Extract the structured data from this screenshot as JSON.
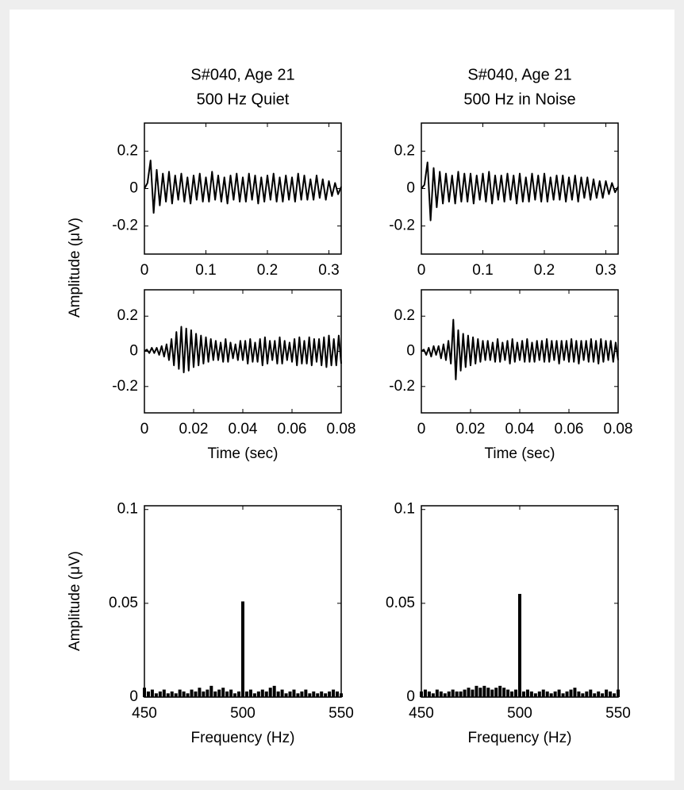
{
  "chart_data": [
    {
      "type": "line",
      "title": [
        "S#040, Age 21",
        "500 Hz Quiet"
      ],
      "ylabel": "Amplitude (μV)",
      "color": "#000000",
      "xlim": [
        0,
        0.32
      ],
      "ylim": [
        -0.35,
        0.35
      ],
      "xticks": [
        0,
        0.1,
        0.2,
        0.3
      ],
      "yticks": [
        -0.2,
        0,
        0.2
      ],
      "x": [
        0,
        0.005,
        0.01,
        0.015,
        0.02,
        0.025,
        0.03,
        0.035,
        0.04,
        0.045,
        0.05,
        0.055,
        0.06,
        0.065,
        0.07,
        0.075,
        0.08,
        0.085,
        0.09,
        0.095,
        0.1,
        0.105,
        0.11,
        0.115,
        0.12,
        0.125,
        0.13,
        0.135,
        0.14,
        0.145,
        0.15,
        0.155,
        0.16,
        0.165,
        0.17,
        0.175,
        0.18,
        0.185,
        0.19,
        0.195,
        0.2,
        0.205,
        0.21,
        0.215,
        0.22,
        0.225,
        0.23,
        0.235,
        0.24,
        0.245,
        0.25,
        0.255,
        0.26,
        0.265,
        0.27,
        0.275,
        0.28,
        0.285,
        0.29,
        0.295,
        0.3,
        0.305,
        0.31,
        0.315,
        0.32
      ],
      "values": [
        0,
        0.03,
        0.15,
        -0.13,
        0.1,
        -0.09,
        0.08,
        -0.07,
        0.09,
        -0.08,
        0.07,
        -0.06,
        0.08,
        -0.07,
        0.06,
        -0.08,
        0.07,
        -0.06,
        0.08,
        -0.07,
        0.06,
        -0.07,
        0.09,
        -0.06,
        0.07,
        -0.07,
        0.06,
        -0.08,
        0.07,
        -0.06,
        0.08,
        -0.07,
        0.06,
        -0.07,
        0.08,
        -0.06,
        0.07,
        -0.08,
        0.06,
        -0.07,
        0.07,
        -0.06,
        0.08,
        -0.07,
        0.06,
        -0.07,
        0.07,
        -0.06,
        0.06,
        -0.07,
        0.08,
        -0.06,
        0.07,
        -0.06,
        0.05,
        -0.06,
        0.07,
        -0.05,
        0.05,
        -0.06,
        0.04,
        -0.04,
        0.03,
        -0.03,
        0.01
      ]
    },
    {
      "type": "line",
      "title": [
        "S#040, Age 21",
        "500 Hz in Noise"
      ],
      "color": "#000000",
      "xlim": [
        0,
        0.32
      ],
      "ylim": [
        -0.35,
        0.35
      ],
      "xticks": [
        0,
        0.1,
        0.2,
        0.3
      ],
      "yticks": [
        -0.2,
        0,
        0.2
      ],
      "x": [
        0,
        0.005,
        0.01,
        0.015,
        0.02,
        0.025,
        0.03,
        0.035,
        0.04,
        0.045,
        0.05,
        0.055,
        0.06,
        0.065,
        0.07,
        0.075,
        0.08,
        0.085,
        0.09,
        0.095,
        0.1,
        0.105,
        0.11,
        0.115,
        0.12,
        0.125,
        0.13,
        0.135,
        0.14,
        0.145,
        0.15,
        0.155,
        0.16,
        0.165,
        0.17,
        0.175,
        0.18,
        0.185,
        0.19,
        0.195,
        0.2,
        0.205,
        0.21,
        0.215,
        0.22,
        0.225,
        0.23,
        0.235,
        0.24,
        0.245,
        0.25,
        0.255,
        0.26,
        0.265,
        0.27,
        0.275,
        0.28,
        0.285,
        0.29,
        0.295,
        0.3,
        0.305,
        0.31,
        0.315,
        0.32
      ],
      "values": [
        0,
        0.02,
        0.14,
        -0.17,
        0.11,
        -0.1,
        0.09,
        -0.08,
        0.08,
        -0.07,
        0.07,
        -0.08,
        0.09,
        -0.07,
        0.08,
        -0.07,
        0.08,
        -0.08,
        0.07,
        -0.06,
        0.08,
        -0.07,
        0.09,
        -0.08,
        0.07,
        -0.06,
        0.07,
        -0.07,
        0.08,
        -0.06,
        0.07,
        -0.08,
        0.08,
        -0.07,
        0.06,
        -0.07,
        0.08,
        -0.06,
        0.07,
        -0.07,
        0.08,
        -0.07,
        0.06,
        -0.06,
        0.07,
        -0.06,
        0.07,
        -0.07,
        0.06,
        -0.06,
        0.07,
        -0.07,
        0.06,
        -0.05,
        0.06,
        -0.06,
        0.05,
        -0.05,
        0.04,
        -0.05,
        0.04,
        -0.03,
        0.03,
        -0.02,
        0.01
      ]
    },
    {
      "type": "line",
      "xlabel": "Time (sec)",
      "color": "#000000",
      "xlim": [
        0,
        0.08
      ],
      "ylim": [
        -0.35,
        0.35
      ],
      "xticks": [
        0,
        0.02,
        0.04,
        0.06,
        0.08
      ],
      "yticks": [
        -0.2,
        0,
        0.2
      ],
      "x": [
        0,
        0.001,
        0.002,
        0.003,
        0.004,
        0.005,
        0.006,
        0.007,
        0.008,
        0.009,
        0.01,
        0.011,
        0.012,
        0.013,
        0.014,
        0.015,
        0.016,
        0.017,
        0.018,
        0.019,
        0.02,
        0.021,
        0.022,
        0.023,
        0.024,
        0.025,
        0.026,
        0.027,
        0.028,
        0.029,
        0.03,
        0.031,
        0.032,
        0.033,
        0.034,
        0.035,
        0.036,
        0.037,
        0.038,
        0.039,
        0.04,
        0.041,
        0.042,
        0.043,
        0.044,
        0.045,
        0.046,
        0.047,
        0.048,
        0.049,
        0.05,
        0.051,
        0.052,
        0.053,
        0.054,
        0.055,
        0.056,
        0.057,
        0.058,
        0.059,
        0.06,
        0.061,
        0.062,
        0.063,
        0.064,
        0.065,
        0.066,
        0.067,
        0.068,
        0.069,
        0.07,
        0.071,
        0.072,
        0.073,
        0.074,
        0.075,
        0.076,
        0.077,
        0.078,
        0.079,
        0.08
      ],
      "values": [
        0,
        0.01,
        -0.01,
        0.02,
        -0.01,
        0.02,
        -0.02,
        0.03,
        -0.03,
        0.04,
        -0.05,
        0.07,
        -0.08,
        0.11,
        -0.1,
        0.14,
        -0.12,
        0.13,
        -0.11,
        0.12,
        -0.09,
        0.1,
        -0.08,
        0.09,
        -0.07,
        0.08,
        -0.06,
        0.07,
        -0.05,
        0.06,
        -0.05,
        0.05,
        -0.06,
        0.07,
        -0.06,
        0.05,
        -0.04,
        0.04,
        -0.05,
        0.06,
        -0.05,
        0.06,
        -0.07,
        0.07,
        -0.06,
        0.05,
        -0.06,
        0.07,
        -0.08,
        0.08,
        -0.07,
        0.06,
        -0.05,
        0.06,
        -0.07,
        0.08,
        -0.07,
        0.06,
        -0.05,
        0.05,
        -0.06,
        0.07,
        -0.08,
        0.08,
        -0.07,
        0.06,
        -0.07,
        0.08,
        -0.08,
        0.07,
        -0.06,
        0.07,
        -0.08,
        0.08,
        -0.09,
        0.09,
        -0.08,
        0.07,
        -0.08,
        0.09,
        -0.07
      ]
    },
    {
      "type": "line",
      "xlabel": "Time (sec)",
      "color": "#000000",
      "xlim": [
        0,
        0.08
      ],
      "ylim": [
        -0.35,
        0.35
      ],
      "xticks": [
        0,
        0.02,
        0.04,
        0.06,
        0.08
      ],
      "yticks": [
        -0.2,
        0,
        0.2
      ],
      "x": [
        0,
        0.001,
        0.002,
        0.003,
        0.004,
        0.005,
        0.006,
        0.007,
        0.008,
        0.009,
        0.01,
        0.011,
        0.012,
        0.013,
        0.014,
        0.015,
        0.016,
        0.017,
        0.018,
        0.019,
        0.02,
        0.021,
        0.022,
        0.023,
        0.024,
        0.025,
        0.026,
        0.027,
        0.028,
        0.029,
        0.03,
        0.031,
        0.032,
        0.033,
        0.034,
        0.035,
        0.036,
        0.037,
        0.038,
        0.039,
        0.04,
        0.041,
        0.042,
        0.043,
        0.044,
        0.045,
        0.046,
        0.047,
        0.048,
        0.049,
        0.05,
        0.051,
        0.052,
        0.053,
        0.054,
        0.055,
        0.056,
        0.057,
        0.058,
        0.059,
        0.06,
        0.061,
        0.062,
        0.063,
        0.064,
        0.065,
        0.066,
        0.067,
        0.068,
        0.069,
        0.07,
        0.071,
        0.072,
        0.073,
        0.074,
        0.075,
        0.076,
        0.077,
        0.078,
        0.079,
        0.08
      ],
      "values": [
        0,
        0.01,
        -0.02,
        0.02,
        -0.03,
        0.03,
        -0.02,
        0.03,
        -0.04,
        0.04,
        -0.05,
        0.06,
        -0.07,
        0.18,
        -0.16,
        0.12,
        -0.11,
        0.1,
        -0.09,
        0.09,
        -0.08,
        0.08,
        -0.07,
        0.07,
        -0.06,
        0.06,
        -0.05,
        0.06,
        -0.05,
        0.05,
        -0.06,
        0.07,
        -0.06,
        0.05,
        -0.05,
        0.06,
        -0.07,
        0.07,
        -0.06,
        0.05,
        -0.05,
        0.06,
        -0.06,
        0.07,
        -0.06,
        0.05,
        -0.06,
        0.06,
        -0.05,
        0.06,
        -0.06,
        0.07,
        -0.06,
        0.06,
        -0.05,
        0.06,
        -0.07,
        0.06,
        -0.05,
        0.06,
        -0.06,
        0.07,
        -0.06,
        0.06,
        -0.07,
        0.06,
        -0.05,
        0.06,
        -0.06,
        0.07,
        -0.06,
        0.06,
        -0.07,
        0.07,
        -0.06,
        0.06,
        -0.05,
        0.06,
        -0.06,
        0.05,
        -0.05
      ]
    },
    {
      "type": "stem",
      "xlabel": "Frequency (Hz)",
      "ylabel": "Amplitude (μV)",
      "color": "#000000",
      "xlim": [
        450,
        550
      ],
      "ylim": [
        0,
        0.102
      ],
      "xticks": [
        450,
        500,
        550
      ],
      "yticks": [
        0,
        0.05,
        0.1
      ],
      "x": [
        450,
        452,
        454,
        456,
        458,
        460,
        462,
        464,
        466,
        468,
        470,
        472,
        474,
        476,
        478,
        480,
        482,
        484,
        486,
        488,
        490,
        492,
        494,
        496,
        498,
        500,
        502,
        504,
        506,
        508,
        510,
        512,
        514,
        516,
        518,
        520,
        522,
        524,
        526,
        528,
        530,
        532,
        534,
        536,
        538,
        540,
        542,
        544,
        546,
        548,
        550
      ],
      "values": [
        0.005,
        0.003,
        0.004,
        0.002,
        0.003,
        0.004,
        0.002,
        0.003,
        0.002,
        0.004,
        0.003,
        0.002,
        0.004,
        0.003,
        0.005,
        0.003,
        0.004,
        0.006,
        0.003,
        0.004,
        0.005,
        0.003,
        0.004,
        0.002,
        0.003,
        0.051,
        0.003,
        0.004,
        0.002,
        0.003,
        0.004,
        0.003,
        0.005,
        0.006,
        0.003,
        0.004,
        0.002,
        0.003,
        0.004,
        0.002,
        0.003,
        0.004,
        0.002,
        0.003,
        0.002,
        0.003,
        0.002,
        0.003,
        0.004,
        0.003,
        0.002
      ]
    },
    {
      "type": "stem",
      "xlabel": "Frequency (Hz)",
      "color": "#000000",
      "xlim": [
        450,
        550
      ],
      "ylim": [
        0,
        0.102
      ],
      "xticks": [
        450,
        500,
        550
      ],
      "yticks": [
        0,
        0.05,
        0.1
      ],
      "x": [
        450,
        452,
        454,
        456,
        458,
        460,
        462,
        464,
        466,
        468,
        470,
        472,
        474,
        476,
        478,
        480,
        482,
        484,
        486,
        488,
        490,
        492,
        494,
        496,
        498,
        500,
        502,
        504,
        506,
        508,
        510,
        512,
        514,
        516,
        518,
        520,
        522,
        524,
        526,
        528,
        530,
        532,
        534,
        536,
        538,
        540,
        542,
        544,
        546,
        548,
        550
      ],
      "values": [
        0.003,
        0.004,
        0.003,
        0.002,
        0.004,
        0.003,
        0.002,
        0.003,
        0.004,
        0.003,
        0.003,
        0.004,
        0.005,
        0.004,
        0.006,
        0.005,
        0.006,
        0.005,
        0.004,
        0.005,
        0.006,
        0.005,
        0.004,
        0.003,
        0.004,
        0.055,
        0.003,
        0.004,
        0.003,
        0.002,
        0.003,
        0.004,
        0.003,
        0.002,
        0.003,
        0.004,
        0.002,
        0.003,
        0.004,
        0.005,
        0.003,
        0.002,
        0.003,
        0.004,
        0.002,
        0.003,
        0.002,
        0.004,
        0.003,
        0.002,
        0.004
      ]
    }
  ]
}
